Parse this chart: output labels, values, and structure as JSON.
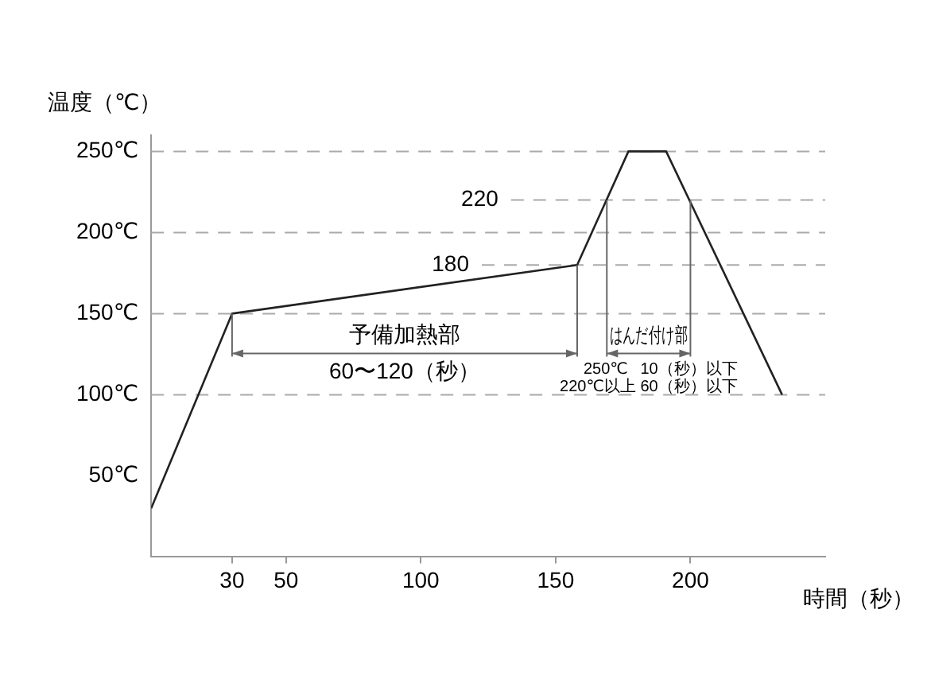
{
  "chart_data": {
    "type": "line",
    "xlabel": "時間（秒）",
    "ylabel": "温度（℃）",
    "x": [
      0,
      30,
      158,
      177,
      191,
      234
    ],
    "series": [
      {
        "color": "#222222",
        "values": [
          30,
          150,
          180,
          250,
          250,
          100
        ]
      }
    ],
    "xlim": [
      0,
      250
    ],
    "xticks": [
      30,
      50,
      100,
      150,
      200
    ],
    "ylim": [
      0,
      260
    ],
    "yticks": [
      {
        "value": 50,
        "label": "50℃"
      },
      {
        "value": 100,
        "label": "100℃"
      },
      {
        "value": 150,
        "label": "150℃"
      },
      {
        "value": 200,
        "label": "200℃"
      },
      {
        "value": 250,
        "label": "250℃"
      }
    ],
    "ref_lines": [
      {
        "axis": "y",
        "value": 100,
        "label": null,
        "color": "#aaaaaa",
        "line_style": "dashed"
      },
      {
        "axis": "y",
        "value": 150,
        "label": null,
        "color": "#aaaaaa",
        "line_style": "dashed"
      },
      {
        "axis": "y",
        "value": 180,
        "label": "180",
        "color": "#aaaaaa",
        "line_style": "dashed"
      },
      {
        "axis": "y",
        "value": 200,
        "label": null,
        "color": "#aaaaaa",
        "line_style": "dashed"
      },
      {
        "axis": "y",
        "value": 220,
        "label": "220",
        "color": "#aaaaaa",
        "line_style": "dashed"
      },
      {
        "axis": "y",
        "value": 250,
        "label": null,
        "color": "#aaaaaa",
        "line_style": "dashed"
      }
    ],
    "annotations": [
      "予備加熱部",
      "60〜120（秒）",
      {
        "text": "はんだ付け部",
        "x": 169,
        "y": 220
      },
      {
        "text": "250℃",
        "x": 158,
        "y": 180
      },
      {
        "text": "10（秒）以下",
        "x": 200,
        "y": 220
      },
      "220℃以上 60（秒）以下"
    ],
    "grid": false,
    "legend": false
  }
}
